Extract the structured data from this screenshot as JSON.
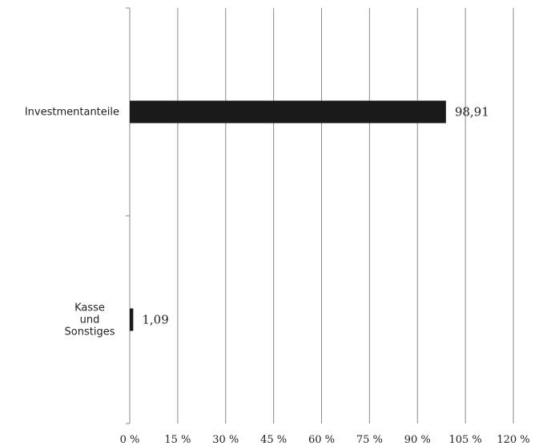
{
  "chart_data": {
    "type": "bar",
    "orientation": "horizontal",
    "categories": [
      [
        "Investmentanteile"
      ],
      [
        "Kasse",
        "und",
        "Sonstiges"
      ]
    ],
    "values": [
      98.91,
      1.09
    ],
    "data_labels": [
      "98,91",
      "1,09"
    ],
    "xlim": [
      0,
      120
    ],
    "x_ticks": [
      0,
      15,
      30,
      45,
      60,
      75,
      90,
      105,
      120
    ],
    "x_tick_labels": [
      "0 %",
      "15 %",
      "30 %",
      "45 %",
      "60 %",
      "75 %",
      "90 %",
      "105 %",
      "120 %"
    ],
    "grid": true,
    "legend": "none",
    "title": "",
    "xlabel": "",
    "ylabel": "",
    "colors": {
      "bar": "#1a1a1a",
      "grid": "#8a8a8a",
      "text": "#222222"
    }
  }
}
